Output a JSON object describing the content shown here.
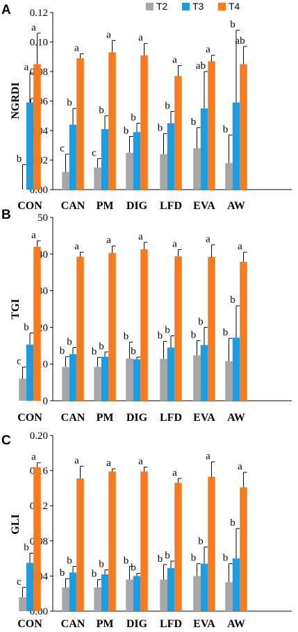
{
  "colors": {
    "T2": "#a6a6a6",
    "T3": "#1f9be0",
    "T4": "#f47b20",
    "axis": "#000000",
    "error": "#000000"
  },
  "legend": [
    "T2",
    "T3",
    "T4"
  ],
  "chart_data": [
    {
      "panel": "A",
      "type": "bar",
      "ylabel": "NGRDI",
      "xlabel": "",
      "ylim": [
        0,
        0.12
      ],
      "ytick_values": [
        0,
        0.02,
        0.04,
        0.06,
        0.08,
        0.1,
        0.12
      ],
      "ytick_labels": [
        "0.00",
        "0.02",
        "0.04",
        "0.06",
        "0.08",
        "0.10",
        "0.12"
      ],
      "categories": [
        "CON",
        "CAN",
        "PM",
        "DIG",
        "LFD",
        "EVA",
        "AW"
      ],
      "series": [
        {
          "name": "T2",
          "values": [
            0.0,
            0.012,
            0.015,
            0.025,
            0.024,
            0.028,
            0.018
          ],
          "errors": [
            0.017,
            0.012,
            0.006,
            0.011,
            0.014,
            0.014,
            0.019
          ],
          "letters": [
            "b",
            "c",
            "c",
            "b",
            "b",
            "b",
            "b"
          ]
        },
        {
          "name": "T3",
          "values": [
            0.059,
            0.044,
            0.041,
            0.039,
            0.045,
            0.055,
            0.059
          ],
          "errors": [
            0.02,
            0.011,
            0.009,
            0.006,
            0.008,
            0.025,
            0.049
          ],
          "letters": [
            "a",
            "b",
            "b",
            "b",
            "b",
            "ab",
            "b"
          ]
        },
        {
          "name": "T4",
          "values": [
            0.085,
            0.089,
            0.093,
            0.091,
            0.077,
            0.087,
            0.085
          ],
          "errors": [
            0.021,
            0.003,
            0.008,
            0.008,
            0.007,
            0.004,
            0.012
          ],
          "letters": [
            "a",
            "a",
            "a",
            "a",
            "a",
            "a",
            "ab"
          ]
        }
      ]
    },
    {
      "panel": "B",
      "type": "bar",
      "ylabel": "TGI",
      "xlabel": "",
      "ylim": [
        0,
        50
      ],
      "ytick_values": [
        0,
        10,
        20,
        30,
        40,
        50
      ],
      "ytick_labels": [
        "0",
        "10",
        "20",
        "30",
        "40",
        "50"
      ],
      "categories": [
        "CON",
        "CAN",
        "PM",
        "DIG",
        "LFD",
        "EVA",
        "AW"
      ],
      "series": [
        {
          "name": "T2",
          "values": [
            6,
            9.2,
            9.2,
            11.5,
            11.4,
            12.4,
            10.8
          ],
          "errors": [
            3.2,
            2.8,
            2.6,
            4.5,
            4.8,
            4,
            6.2
          ],
          "letters": [
            "c",
            "b",
            "b",
            "b",
            "b",
            "b",
            "b"
          ]
        },
        {
          "name": "T3",
          "values": [
            15.3,
            12.7,
            12,
            11.3,
            14.5,
            15.2,
            17.2
          ],
          "errors": [
            3.2,
            1.8,
            1.3,
            0.6,
            3.2,
            4.8,
            8.7
          ],
          "letters": [
            "b",
            "b",
            "b",
            "b",
            "b",
            "b",
            "b"
          ]
        },
        {
          "name": "T4",
          "values": [
            42,
            39.3,
            40.3,
            41.3,
            39.4,
            39.2,
            37.9
          ],
          "errors": [
            1.6,
            1.2,
            1.9,
            1.9,
            1.8,
            3.3,
            2.6
          ],
          "letters": [
            "a",
            "a",
            "a",
            "a",
            "a",
            "a",
            "a"
          ]
        }
      ]
    },
    {
      "panel": "C",
      "type": "bar",
      "ylabel": "GLI",
      "xlabel": "",
      "ylim": [
        0,
        0.2
      ],
      "ytick_values": [
        0,
        0.04,
        0.08,
        0.12,
        0.16,
        0.2
      ],
      "ytick_labels": [
        "0.00",
        "0.04",
        "0.08",
        "0.12",
        "0.16",
        "0.20"
      ],
      "categories": [
        "CON",
        "CAN",
        "PM",
        "DIG",
        "LFD",
        "EVA",
        "AW"
      ],
      "series": [
        {
          "name": "T2",
          "values": [
            0.016,
            0.027,
            0.027,
            0.036,
            0.036,
            0.04,
            0.033
          ],
          "errors": [
            0.011,
            0.01,
            0.009,
            0.015,
            0.017,
            0.014,
            0.021
          ],
          "letters": [
            "c",
            "b",
            "b",
            "b",
            "b",
            "b",
            "b"
          ]
        },
        {
          "name": "T3",
          "values": [
            0.055,
            0.044,
            0.042,
            0.04,
            0.049,
            0.054,
            0.06
          ],
          "errors": [
            0.011,
            0.007,
            0.005,
            0.003,
            0.008,
            0.019,
            0.034
          ],
          "letters": [
            "b",
            "b",
            "b",
            "b",
            "b",
            "b",
            "b"
          ]
        },
        {
          "name": "T4",
          "values": [
            0.164,
            0.151,
            0.159,
            0.159,
            0.146,
            0.153,
            0.141
          ],
          "errors": [
            0.005,
            0.014,
            0.003,
            0.005,
            0.005,
            0.017,
            0.017
          ],
          "letters": [
            "a",
            "a",
            "a",
            "a",
            "a",
            "a",
            "a"
          ]
        }
      ]
    }
  ]
}
